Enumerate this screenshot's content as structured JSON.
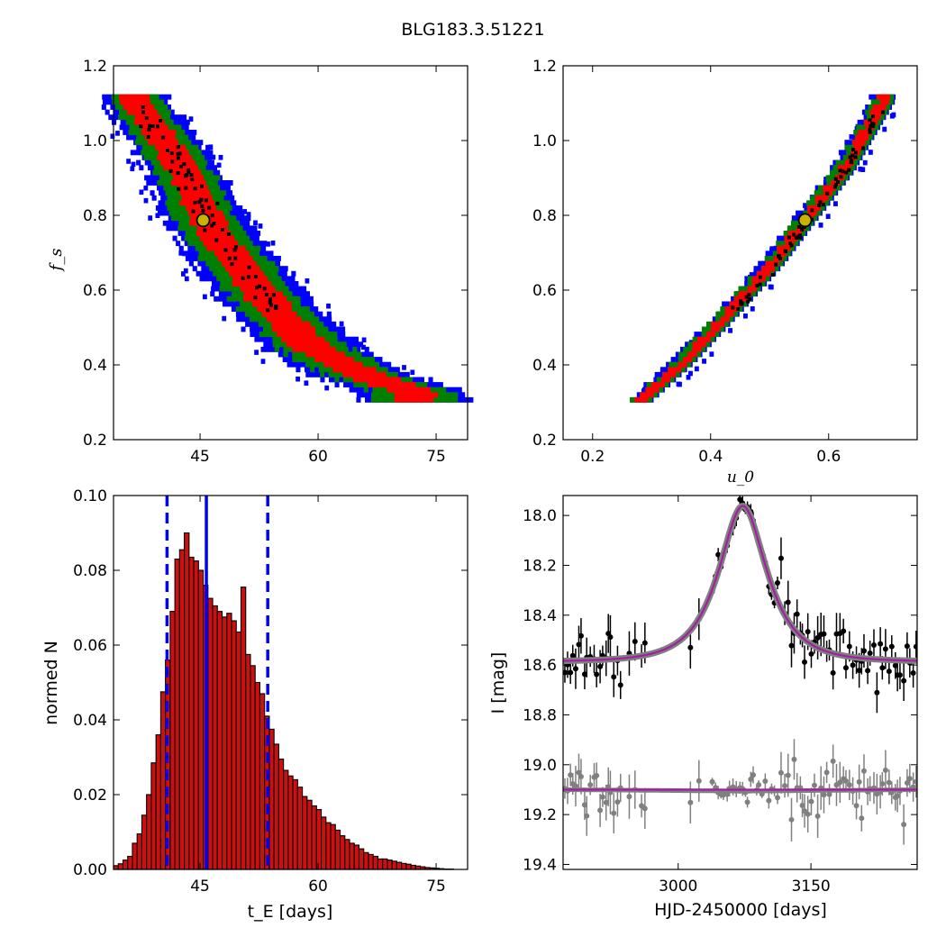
{
  "figure_title": "BLG183.3.51221",
  "colors": {
    "sigma3": "#0000ff",
    "sigma2": "#008000",
    "sigma1": "#ff0000",
    "best": "#000000",
    "marker_fill": "#c8b400",
    "hist_fill": "#cc1010",
    "vline": "#0000ff",
    "model_outer": "#808080",
    "model_inner": "#a020a0",
    "residual": "#808080"
  },
  "chart_data": [
    {
      "id": "tE-fs",
      "type": "heatmap",
      "xlabel": "",
      "ylabel": "f_s",
      "xlim": [
        34,
        79
      ],
      "ylim": [
        0.2,
        1.2
      ],
      "xticks": [
        "45",
        "60",
        "75"
      ],
      "yticks": [
        "0.2",
        "0.4",
        "0.6",
        "0.8",
        "1.0",
        "1.2"
      ],
      "best_fit": {
        "x": 45.4,
        "y": 0.787
      },
      "ridge": [
        [
          36.5,
          1.1
        ],
        [
          40,
          1.0
        ],
        [
          43,
          0.9
        ],
        [
          45.4,
          0.787
        ],
        [
          49,
          0.68
        ],
        [
          53,
          0.57
        ],
        [
          59,
          0.44
        ],
        [
          65,
          0.37
        ],
        [
          72,
          0.32
        ]
      ],
      "regions": [
        {
          "name": "3-sigma",
          "width_tE": 6.5
        },
        {
          "name": "2-sigma",
          "width_tE": 4.8
        },
        {
          "name": "1-sigma",
          "width_tE": 2.6
        }
      ]
    },
    {
      "id": "u0-fs",
      "type": "heatmap",
      "xlabel": "u_0",
      "ylabel": "",
      "xlim": [
        0.15,
        0.75
      ],
      "ylim": [
        0.2,
        1.2
      ],
      "xticks": [
        "0.2",
        "0.4",
        "0.6"
      ],
      "yticks": [
        "0.2",
        "0.4",
        "0.6",
        "0.8",
        "1.0",
        "1.2"
      ],
      "best_fit": {
        "x": 0.56,
        "y": 0.787
      },
      "ridge": [
        [
          0.28,
          0.3
        ],
        [
          0.35,
          0.4
        ],
        [
          0.42,
          0.52
        ],
        [
          0.5,
          0.66
        ],
        [
          0.56,
          0.787
        ],
        [
          0.62,
          0.91
        ],
        [
          0.69,
          1.1
        ]
      ],
      "regions": [
        {
          "name": "3-sigma",
          "width_u0": 0.022
        },
        {
          "name": "2-sigma",
          "width_u0": 0.017
        },
        {
          "name": "1-sigma",
          "width_u0": 0.009
        }
      ]
    },
    {
      "id": "tE-hist",
      "type": "bar",
      "xlabel": "t_E  [days]",
      "ylabel": "normed N",
      "xlim": [
        34,
        79
      ],
      "ylim": [
        0,
        0.1
      ],
      "xticks": [
        "45",
        "60",
        "75"
      ],
      "yticks": [
        "0.00",
        "0.02",
        "0.04",
        "0.06",
        "0.08",
        "0.10"
      ],
      "bin_edges_start": 34.0,
      "bin_width": 0.6,
      "values": [
        0.001,
        0.0015,
        0.0025,
        0.0035,
        0.007,
        0.0095,
        0.0145,
        0.02,
        0.0285,
        0.036,
        0.0475,
        0.056,
        0.069,
        0.083,
        0.0855,
        0.09,
        0.0835,
        0.0825,
        0.08,
        0.076,
        0.0725,
        0.0705,
        0.069,
        0.0675,
        0.0685,
        0.0665,
        0.0635,
        0.0755,
        0.0575,
        0.0545,
        0.05,
        0.047,
        0.041,
        0.0375,
        0.0335,
        0.0295,
        0.0265,
        0.025,
        0.024,
        0.022,
        0.0195,
        0.0185,
        0.017,
        0.016,
        0.014,
        0.0125,
        0.012,
        0.0105,
        0.009,
        0.008,
        0.007,
        0.0065,
        0.0055,
        0.0045,
        0.004,
        0.0035,
        0.0028,
        0.0028,
        0.0025,
        0.0022,
        0.0019,
        0.0016,
        0.0014,
        0.0011,
        0.0009,
        0.0007,
        0.0005,
        0.0004,
        0.0003,
        0.0002,
        0.0001,
        0.0001
      ],
      "median": 45.8,
      "lower": 40.8,
      "upper": 53.6
    },
    {
      "id": "lightcurve",
      "type": "scatter",
      "xlabel": "HJD-2450000 [days]",
      "ylabel": "I [mag]",
      "xlim": [
        2870,
        3270
      ],
      "ylim": [
        19.42,
        17.92
      ],
      "xticks": [
        "3000",
        "3150"
      ],
      "yticks": [
        "18.0",
        "18.2",
        "18.4",
        "18.6",
        "18.8",
        "19.0",
        "19.2",
        "19.4"
      ],
      "model": {
        "t0": 3073,
        "tE": 45.8,
        "u0": 0.56,
        "fs": 0.787,
        "I_base": 18.587
      },
      "residual_offset": 19.1
    }
  ]
}
